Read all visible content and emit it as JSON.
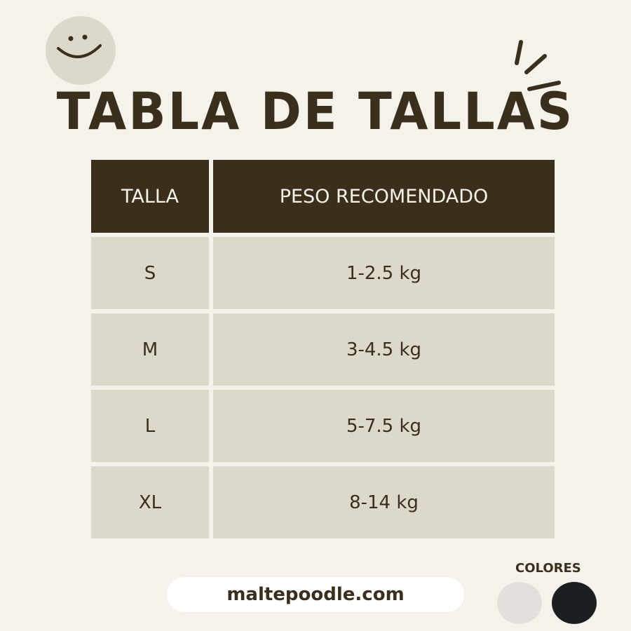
{
  "title": "TABLA DE TALLAS",
  "table": {
    "headers": [
      "TALLA",
      "PESO RECOMENDADO"
    ],
    "rows": [
      [
        "S",
        "1-2.5 kg"
      ],
      [
        "M",
        "3-4.5 kg"
      ],
      [
        "L",
        "5-7.5 kg"
      ],
      [
        "XL",
        "8-14 kg"
      ]
    ]
  },
  "website": "maltepoodle.com",
  "colors": {
    "label": "COLORES",
    "swatches": [
      "#e5dfdc",
      "#1c1f22"
    ]
  },
  "icons": [
    "smiley-icon",
    "sparkle-lines-icon"
  ]
}
